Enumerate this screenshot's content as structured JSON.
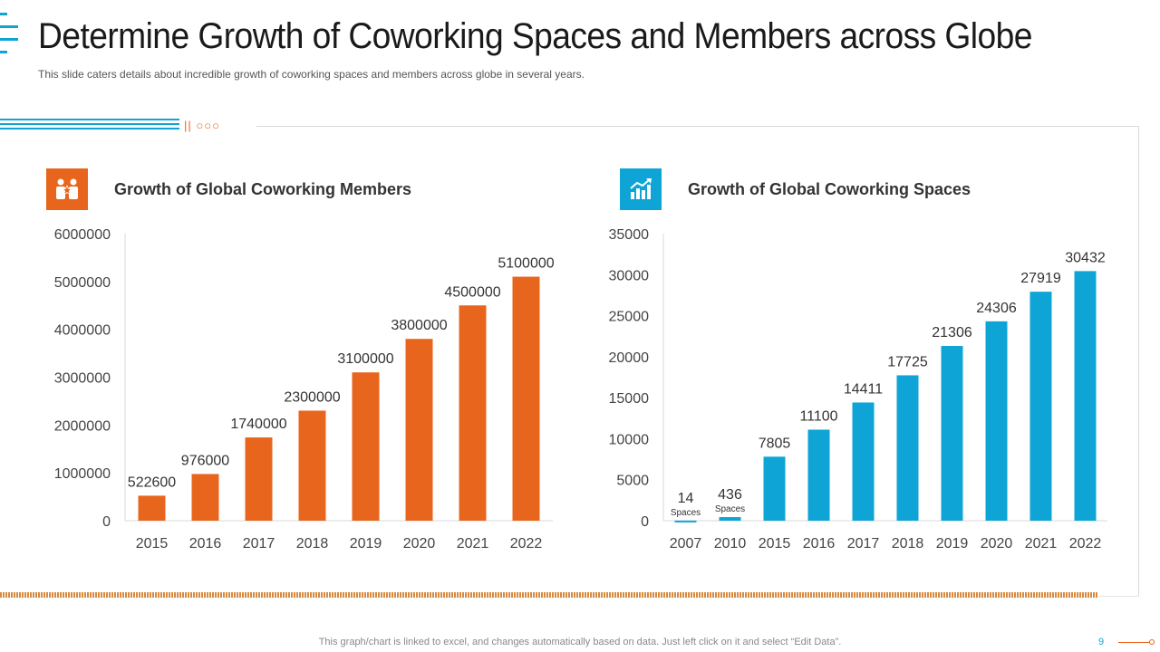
{
  "slide": {
    "title": "Determine Growth of Coworking Spaces and Members across Globe",
    "subtitle": "This slide caters details about incredible growth of coworking spaces and members across globe in several years.",
    "footer_note": "This graph/chart is linked to excel, and changes automatically based on data. Just left click on it and select “Edit Data”.",
    "page_number": "9",
    "deco_text": "|| ○○○",
    "accent_orange": "#E8651D",
    "accent_blue": "#0EA5D6"
  },
  "icons": {
    "members": "people-award-icon",
    "spaces": "growth-bar-chart-icon"
  },
  "chart_data": [
    {
      "type": "bar",
      "title": "Growth of Global Coworking Members",
      "categories": [
        "2015",
        "2016",
        "2017",
        "2018",
        "2019",
        "2020",
        "2021",
        "2022"
      ],
      "values": [
        522600,
        976000,
        1740000,
        2300000,
        3100000,
        3800000,
        4500000,
        5100000
      ],
      "data_labels": [
        "522600",
        "976000",
        "1740000",
        "2300000",
        "3100000",
        "3800000",
        "4500000",
        "5100000"
      ],
      "yticks": [
        0,
        1000000,
        2000000,
        3000000,
        4000000,
        5000000,
        6000000
      ],
      "ylim": [
        0,
        6000000
      ],
      "color": "#E8651D",
      "grid": false
    },
    {
      "type": "bar",
      "title": "Growth of Global Coworking Spaces",
      "categories": [
        "2007",
        "2010",
        "2015",
        "2016",
        "2017",
        "2018",
        "2019",
        "2020",
        "2021",
        "2022"
      ],
      "values": [
        14,
        436,
        7805,
        11100,
        14411,
        17725,
        21306,
        24306,
        27919,
        30432
      ],
      "data_labels": [
        "14",
        "436",
        "7805",
        "11100",
        "14411",
        "17725",
        "21306",
        "24306",
        "27919",
        "30432"
      ],
      "data_label_notes": [
        "Spaces",
        "Spaces",
        "",
        "",
        "",
        "",
        "",
        "",
        "",
        ""
      ],
      "yticks": [
        0,
        5000,
        10000,
        15000,
        20000,
        25000,
        30000,
        35000
      ],
      "ylim": [
        0,
        35000
      ],
      "color": "#0EA5D6",
      "grid": false
    }
  ]
}
